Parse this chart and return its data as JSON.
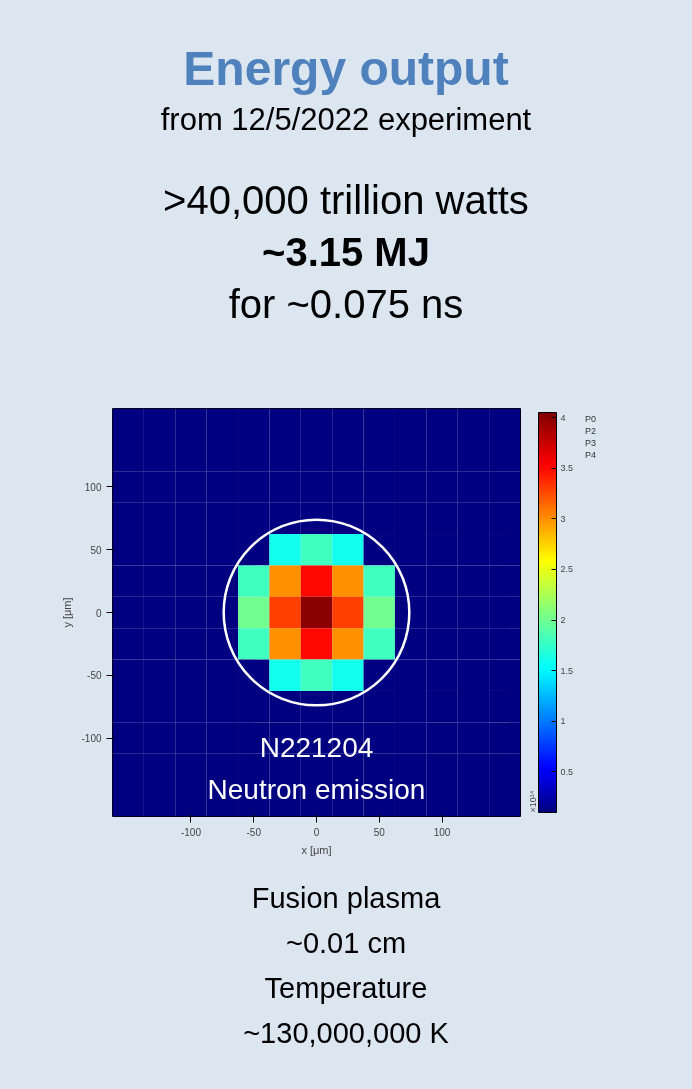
{
  "chart_data": {
    "type": "heatmap",
    "title": "Energy output",
    "subtitle": "from 12/5/2022 experiment",
    "xlabel": "x [μm]",
    "ylabel": "y [μm]",
    "clabel": "×10¹⁴",
    "annotations": [
      ">40,000 trillion watts",
      "~3.15 MJ",
      "for ~0.075 ns",
      "N221204",
      "Neutron emission",
      "P0",
      "P2",
      "P3",
      "P4",
      "Fusion plasma",
      "~0.01 cm",
      "Temperature",
      "~130,000,000 K"
    ],
    "categories": [
      null,
      null,
      "-100",
      null,
      "-50",
      null,
      "0",
      null,
      "50",
      null,
      "100",
      null,
      null
    ],
    "y_categories": [
      null,
      null,
      "100",
      null,
      "50",
      null,
      "0",
      null,
      "-50",
      null,
      "-100",
      null,
      null
    ],
    "clim": [
      0.1,
      4.05
    ],
    "cticks": [
      0.5,
      1,
      1.5,
      2,
      2.5,
      3,
      3.5,
      4
    ],
    "cells": [
      [
        0.1,
        0.1,
        0.1,
        0.1,
        0.1,
        0.1,
        0.1,
        0.1,
        0.1,
        0.1,
        0.1,
        0.1,
        0.1
      ],
      [
        0.1,
        0.1,
        0.1,
        0.1,
        0.1,
        0.1,
        0.1,
        0.1,
        0.1,
        0.1,
        0.1,
        0.1,
        0.1
      ],
      [
        0.1,
        0.1,
        0.1,
        0.1,
        0.1,
        0.1,
        0.1,
        0.1,
        0.1,
        0.1,
        0.1,
        0.1,
        0.1
      ],
      [
        0.1,
        0.1,
        0.1,
        0.1,
        0.1,
        0.1,
        0.1,
        0.1,
        0.1,
        0.1,
        0.1,
        0.1,
        0.1
      ],
      [
        0.1,
        0.1,
        0.1,
        0.1,
        0.1,
        1.6,
        1.8,
        1.6,
        0.1,
        0.1,
        0.1,
        0.1,
        0.1
      ],
      [
        0.1,
        0.1,
        0.1,
        0.1,
        1.8,
        3.0,
        3.5,
        3.0,
        1.8,
        0.1,
        0.1,
        0.1,
        0.1
      ],
      [
        0.1,
        0.1,
        0.1,
        0.1,
        2.0,
        3.3,
        4.0,
        3.3,
        2.0,
        0.1,
        0.1,
        0.1,
        0.1
      ],
      [
        0.1,
        0.1,
        0.1,
        0.1,
        1.8,
        3.0,
        3.5,
        3.0,
        1.8,
        0.1,
        0.1,
        0.1,
        0.1
      ],
      [
        0.1,
        0.1,
        0.1,
        0.1,
        0.1,
        1.6,
        1.8,
        1.6,
        0.1,
        0.1,
        0.1,
        0.1,
        0.1
      ],
      [
        0.1,
        0.1,
        0.1,
        0.1,
        0.1,
        0.1,
        0.1,
        0.1,
        0.1,
        0.1,
        0.1,
        0.1,
        0.1
      ],
      [
        0.1,
        0.1,
        0.1,
        0.1,
        0.1,
        0.1,
        0.1,
        0.1,
        0.1,
        0.1,
        0.1,
        0.1,
        0.1
      ],
      [
        0.1,
        0.1,
        0.1,
        0.1,
        0.1,
        0.1,
        0.1,
        0.1,
        0.1,
        0.1,
        0.1,
        0.1,
        0.1
      ],
      [
        0.1,
        0.1,
        0.1,
        0.1,
        0.1,
        0.1,
        0.1,
        0.1,
        0.1,
        0.1,
        0.1,
        0.1,
        0.1
      ]
    ],
    "grid": false
  }
}
